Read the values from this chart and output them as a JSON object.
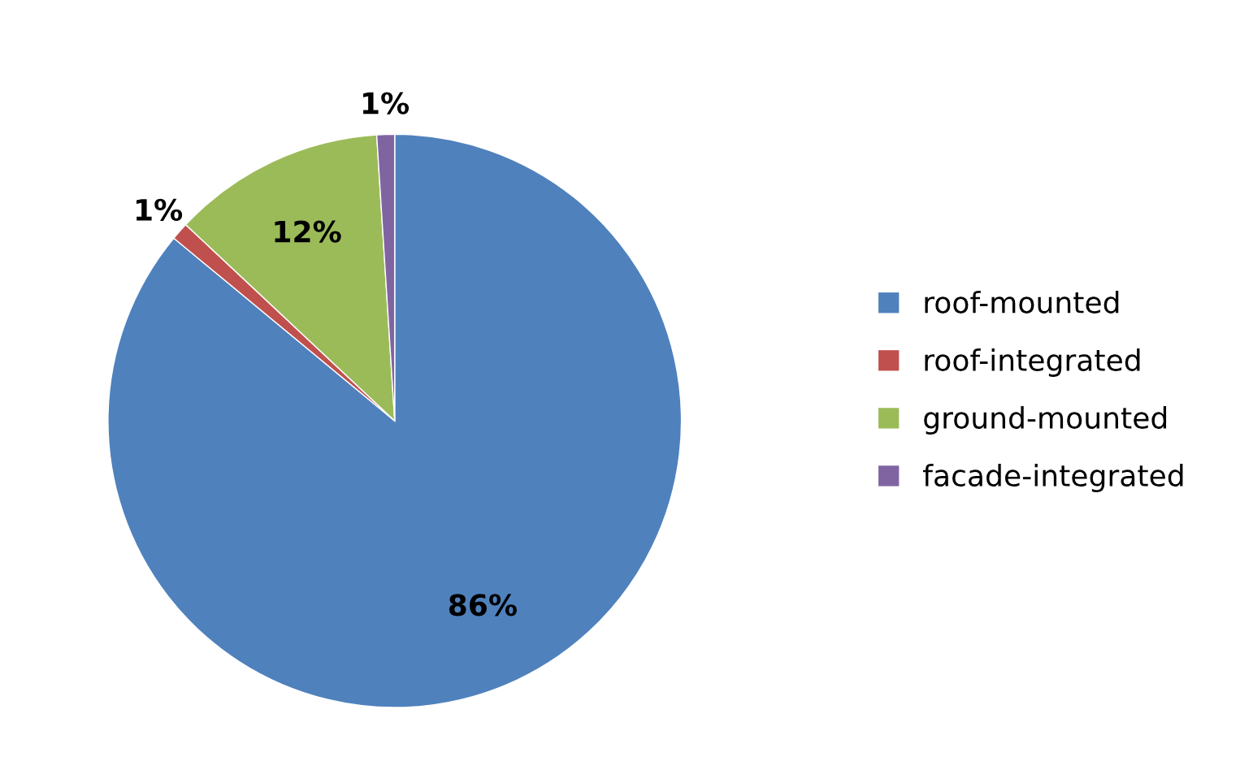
{
  "chart_data": {
    "type": "pie",
    "categories": [
      "roof-mounted",
      "roof-integrated",
      "ground-mounted",
      "facade-integrated"
    ],
    "values": [
      86,
      1,
      12,
      1
    ],
    "colors": [
      "#4f81bd",
      "#c0504d",
      "#9bbb59",
      "#8064a2"
    ],
    "value_labels": [
      "86%",
      "1%",
      "12%",
      "1%"
    ],
    "legend": "right"
  }
}
